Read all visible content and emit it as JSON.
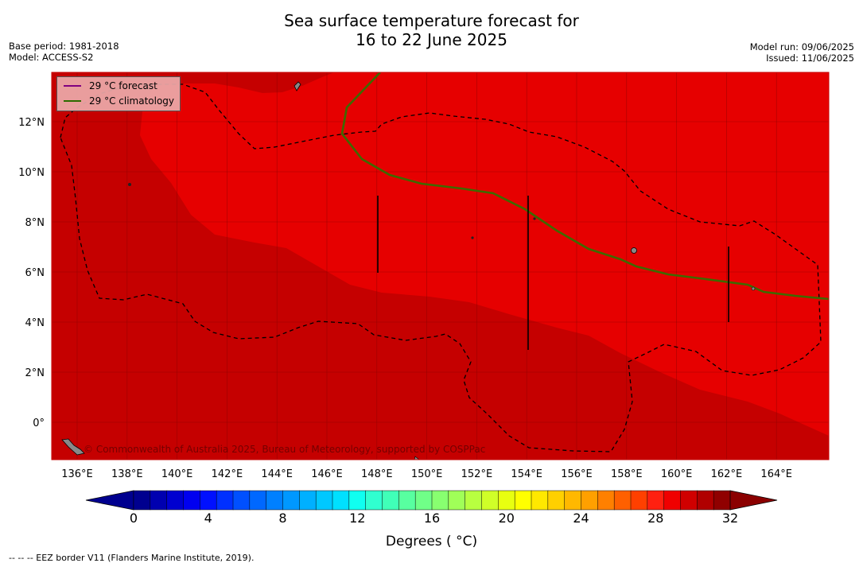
{
  "title_line1": "Sea surface temperature forecast for",
  "title_line2": "16 to 22 June 2025",
  "base_period": "Base period: 1981-2018",
  "model": "Model: ACCESS-S2",
  "model_run": "Model run: 09/06/2025",
  "issued": "Issued: 11/06/2025",
  "legend": {
    "forecast_label": "29 °C  forecast",
    "climatology_label": "29 °C  climatology",
    "forecast_color": "#800080",
    "climatology_color": "#2e6b00"
  },
  "copyright": "© Commonwealth of Australia 2025, Bureau of Meteorology, supported by COSPPac",
  "x_ticks": [
    "136°E",
    "138°E",
    "140°E",
    "142°E",
    "144°E",
    "146°E",
    "148°E",
    "150°E",
    "152°E",
    "154°E",
    "156°E",
    "158°E",
    "160°E",
    "162°E",
    "164°E"
  ],
  "y_ticks": [
    "12°N",
    "10°N",
    "8°N",
    "6°N",
    "4°N",
    "2°N",
    "0°"
  ],
  "colorbar": {
    "ticks": [
      "0",
      "4",
      "8",
      "12",
      "16",
      "20",
      "24",
      "28",
      "32"
    ],
    "label": "Degrees ( °C)",
    "colors": [
      "#00008f",
      "#0000b0",
      "#0000d0",
      "#0000f0",
      "#0010ff",
      "#0030ff",
      "#0050ff",
      "#0068ff",
      "#0080ff",
      "#0098ff",
      "#00b0ff",
      "#00c8ff",
      "#00e0ff",
      "#10fff0",
      "#30ffd0",
      "#40ffb8",
      "#58ffa0",
      "#70ff88",
      "#88ff70",
      "#a0ff58",
      "#b8ff40",
      "#d0ff28",
      "#e8ff10",
      "#ffff00",
      "#ffe800",
      "#ffd000",
      "#ffb800",
      "#ffa000",
      "#ff8000",
      "#ff6000",
      "#ff4000",
      "#ff2010",
      "#f00000",
      "#d00000",
      "#b00000",
      "#900000"
    ],
    "under_color": "#00008f",
    "over_color": "#8b0000"
  },
  "footnote": "--  --  -- EEZ border V11 (Flanders Marine Institute, 2019).",
  "map_colors": {
    "warm_29_30": "#e60000",
    "warm_30_31": "#c50000",
    "grid": "#8b0000"
  }
}
